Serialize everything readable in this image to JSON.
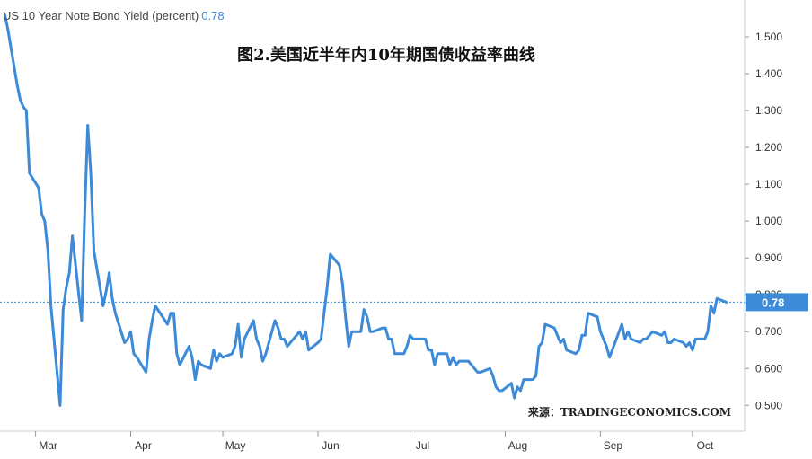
{
  "legend": {
    "label": "US 10 Year Note Bond Yield (percent)",
    "value": "0.78"
  },
  "title": "图2.美国近半年内10年期国债收益率曲线",
  "source": "来源：TRADINGECONOMICS.COM",
  "colors": {
    "line": "#3c8ad8",
    "badge": "#3c8ad8",
    "axis": "#cccccc",
    "text": "#333333"
  },
  "chart_data": {
    "type": "line",
    "ylabel": "percent",
    "ylim": [
      0.43,
      1.6
    ],
    "yticks": [
      "1.500",
      "1.400",
      "1.300",
      "1.200",
      "1.100",
      "1.000",
      "0.900",
      "0.800",
      "0.700",
      "0.600",
      "0.500"
    ],
    "ytick_values": [
      1.5,
      1.4,
      1.3,
      1.2,
      1.1,
      1.0,
      0.9,
      0.8,
      0.7,
      0.6,
      0.5
    ],
    "xticks": [
      "Mar",
      "Apr",
      "May",
      "Jun",
      "Jul",
      "Aug",
      "Sep",
      "Oct"
    ],
    "xtick_dates": [
      "2020-03-01",
      "2020-04-01",
      "2020-05-01",
      "2020-06-01",
      "2020-07-01",
      "2020-08-01",
      "2020-09-01",
      "2020-10-01"
    ],
    "x_range": [
      "2020-02-19",
      "2020-10-18"
    ],
    "current_value": 0.78,
    "series": [
      {
        "x": [
          "2020-02-20",
          "2020-02-21",
          "2020-02-24",
          "2020-02-25",
          "2020-02-26",
          "2020-02-27",
          "2020-02-28",
          "2020-03-02",
          "2020-03-03",
          "2020-03-04",
          "2020-03-05",
          "2020-03-06",
          "2020-03-09",
          "2020-03-10",
          "2020-03-11",
          "2020-03-12",
          "2020-03-13",
          "2020-03-16",
          "2020-03-17",
          "2020-03-18",
          "2020-03-19",
          "2020-03-20",
          "2020-03-23",
          "2020-03-24",
          "2020-03-25",
          "2020-03-26",
          "2020-03-27",
          "2020-03-30",
          "2020-03-31",
          "2020-04-01",
          "2020-04-02",
          "2020-04-03",
          "2020-04-06",
          "2020-04-07",
          "2020-04-08",
          "2020-04-09",
          "2020-04-13",
          "2020-04-14",
          "2020-04-15",
          "2020-04-16",
          "2020-04-17",
          "2020-04-20",
          "2020-04-21",
          "2020-04-22",
          "2020-04-23",
          "2020-04-24",
          "2020-04-27",
          "2020-04-28",
          "2020-04-29",
          "2020-04-30",
          "2020-05-01",
          "2020-05-04",
          "2020-05-05",
          "2020-05-06",
          "2020-05-07",
          "2020-05-08",
          "2020-05-11",
          "2020-05-12",
          "2020-05-13",
          "2020-05-14",
          "2020-05-15",
          "2020-05-18",
          "2020-05-19",
          "2020-05-20",
          "2020-05-21",
          "2020-05-22",
          "2020-05-26",
          "2020-05-27",
          "2020-05-28",
          "2020-05-29",
          "2020-06-01",
          "2020-06-02",
          "2020-06-03",
          "2020-06-04",
          "2020-06-05",
          "2020-06-08",
          "2020-06-09",
          "2020-06-10",
          "2020-06-11",
          "2020-06-12",
          "2020-06-15",
          "2020-06-16",
          "2020-06-17",
          "2020-06-18",
          "2020-06-19",
          "2020-06-22",
          "2020-06-23",
          "2020-06-24",
          "2020-06-25",
          "2020-06-26",
          "2020-06-29",
          "2020-06-30",
          "2020-07-01",
          "2020-07-02",
          "2020-07-06",
          "2020-07-07",
          "2020-07-08",
          "2020-07-09",
          "2020-07-10",
          "2020-07-13",
          "2020-07-14",
          "2020-07-15",
          "2020-07-16",
          "2020-07-17",
          "2020-07-20",
          "2020-07-21",
          "2020-07-22",
          "2020-07-23",
          "2020-07-24",
          "2020-07-27",
          "2020-07-28",
          "2020-07-29",
          "2020-07-30",
          "2020-07-31",
          "2020-08-03",
          "2020-08-04",
          "2020-08-05",
          "2020-08-06",
          "2020-08-07",
          "2020-08-10",
          "2020-08-11",
          "2020-08-12",
          "2020-08-13",
          "2020-08-14",
          "2020-08-17",
          "2020-08-18",
          "2020-08-19",
          "2020-08-20",
          "2020-08-21",
          "2020-08-24",
          "2020-08-25",
          "2020-08-26",
          "2020-08-27",
          "2020-08-28",
          "2020-08-31",
          "2020-09-01",
          "2020-09-02",
          "2020-09-03",
          "2020-09-04",
          "2020-09-08",
          "2020-09-09",
          "2020-09-10",
          "2020-09-11",
          "2020-09-14",
          "2020-09-15",
          "2020-09-16",
          "2020-09-17",
          "2020-09-18",
          "2020-09-21",
          "2020-09-22",
          "2020-09-23",
          "2020-09-24",
          "2020-09-25",
          "2020-09-28",
          "2020-09-29",
          "2020-09-30",
          "2020-10-01",
          "2020-10-02",
          "2020-10-05",
          "2020-10-06",
          "2020-10-07",
          "2020-10-08",
          "2020-10-09",
          "2020-10-12"
        ],
        "y": [
          1.56,
          1.52,
          1.37,
          1.33,
          1.31,
          1.3,
          1.13,
          1.09,
          1.02,
          1.0,
          0.92,
          0.77,
          0.5,
          0.76,
          0.82,
          0.86,
          0.96,
          0.73,
          1.02,
          1.26,
          1.13,
          0.92,
          0.77,
          0.81,
          0.86,
          0.79,
          0.75,
          0.67,
          0.68,
          0.7,
          0.64,
          0.63,
          0.59,
          0.68,
          0.73,
          0.77,
          0.72,
          0.75,
          0.75,
          0.64,
          0.61,
          0.66,
          0.63,
          0.57,
          0.62,
          0.61,
          0.6,
          0.65,
          0.62,
          0.64,
          0.63,
          0.64,
          0.66,
          0.72,
          0.63,
          0.68,
          0.73,
          0.68,
          0.66,
          0.62,
          0.64,
          0.73,
          0.71,
          0.68,
          0.68,
          0.66,
          0.7,
          0.68,
          0.7,
          0.65,
          0.67,
          0.68,
          0.75,
          0.82,
          0.91,
          0.88,
          0.83,
          0.74,
          0.66,
          0.7,
          0.7,
          0.76,
          0.74,
          0.7,
          0.7,
          0.71,
          0.71,
          0.68,
          0.68,
          0.64,
          0.64,
          0.66,
          0.69,
          0.68,
          0.68,
          0.65,
          0.65,
          0.61,
          0.64,
          0.64,
          0.61,
          0.63,
          0.61,
          0.62,
          0.62,
          0.61,
          0.6,
          0.59,
          0.59,
          0.6,
          0.58,
          0.55,
          0.54,
          0.54,
          0.56,
          0.52,
          0.55,
          0.54,
          0.57,
          0.57,
          0.58,
          0.66,
          0.67,
          0.72,
          0.71,
          0.69,
          0.67,
          0.68,
          0.65,
          0.64,
          0.65,
          0.69,
          0.69,
          0.75,
          0.74,
          0.7,
          0.68,
          0.66,
          0.63,
          0.72,
          0.68,
          0.7,
          0.68,
          0.67,
          0.68,
          0.68,
          0.69,
          0.7,
          0.69,
          0.7,
          0.67,
          0.67,
          0.68,
          0.67,
          0.66,
          0.67,
          0.65,
          0.68,
          0.68,
          0.7,
          0.77,
          0.75,
          0.79,
          0.78
        ]
      }
    ]
  }
}
